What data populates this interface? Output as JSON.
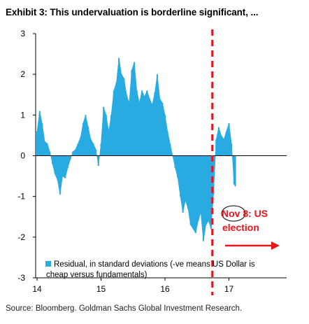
{
  "title": "Exhibit 3: This undervaluation is borderline significant, ...",
  "source": "Source: Bloomberg. Goldman Sachs Global Investment Research.",
  "colors": {
    "series": "#29abe2",
    "annotation": "#e8141b",
    "axis": "#000000"
  },
  "chart_data": {
    "type": "area",
    "title": "Exhibit 3: This undervaluation is borderline significant, ...",
    "xlabel": "",
    "ylabel": "",
    "ylim": [
      -3,
      3
    ],
    "yticks": [
      "3",
      "2",
      "1",
      "0",
      "-1",
      "-2",
      "-3"
    ],
    "xlim": [
      2014,
      2017.3
    ],
    "xticks": [
      "14",
      "15",
      "16",
      "17"
    ],
    "grid": false,
    "legend": {
      "position": "bottom-left",
      "line1": "Residual, in standard deviations (-ve means US Dollar is",
      "line2": "cheap versus fundamentals)"
    },
    "series": [
      {
        "name": "Residual, in standard deviations (-ve means US Dollar is cheap versus fundamentals)",
        "x": [
          2014.0,
          2014.04,
          2014.08,
          2014.12,
          2014.16,
          2014.2,
          2014.24,
          2014.28,
          2014.32,
          2014.36,
          2014.4,
          2014.44,
          2014.48,
          2014.52,
          2014.56,
          2014.6,
          2014.64,
          2014.68,
          2014.72,
          2014.76,
          2014.8,
          2014.84,
          2014.88,
          2014.92,
          2014.96,
          2015.0,
          2015.04,
          2015.08,
          2015.12,
          2015.16,
          2015.2,
          2015.24,
          2015.28,
          2015.32,
          2015.36,
          2015.4,
          2015.44,
          2015.48,
          2015.52,
          2015.56,
          2015.6,
          2015.64,
          2015.68,
          2015.72,
          2015.76,
          2015.8,
          2015.84,
          2015.88,
          2015.92,
          2015.96,
          2016.0,
          2016.04,
          2016.08,
          2016.12,
          2016.16,
          2016.2,
          2016.24,
          2016.28,
          2016.32,
          2016.36,
          2016.4,
          2016.44,
          2016.48,
          2016.52,
          2016.56,
          2016.6,
          2016.64,
          2016.68,
          2016.72,
          2016.76,
          2016.8,
          2016.84,
          2016.88,
          2016.92,
          2016.96,
          2017.0,
          2017.04,
          2017.08,
          2017.1
        ],
        "values": [
          0.6,
          1.1,
          0.8,
          0.35,
          0.3,
          0.1,
          -0.2,
          -0.45,
          -0.6,
          -0.95,
          -0.5,
          -0.55,
          -0.3,
          -0.1,
          0.1,
          0.15,
          0.3,
          0.45,
          0.8,
          1.0,
          0.7,
          0.4,
          0.3,
          0.15,
          -0.25,
          0.3,
          1.2,
          1.0,
          0.6,
          1.0,
          1.6,
          1.8,
          2.4,
          2.0,
          1.9,
          1.5,
          1.3,
          2.1,
          2.3,
          1.6,
          1.3,
          1.6,
          1.45,
          1.6,
          1.4,
          1.25,
          1.55,
          2.0,
          1.4,
          1.3,
          1.0,
          0.6,
          0.3,
          0.0,
          -0.3,
          -0.55,
          -1.0,
          -1.4,
          -1.1,
          -1.3,
          -1.7,
          -1.8,
          -1.9,
          -1.6,
          -1.4,
          -2.1,
          -1.7,
          -1.6,
          -1.8,
          -0.95,
          0.4,
          0.7,
          0.5,
          0.4,
          0.6,
          0.8,
          0.3,
          -0.7,
          -0.75
        ]
      }
    ],
    "annotations": {
      "event_line_x": 2016.74,
      "event_label_line1": "Nov 8: US",
      "event_label_line2": "election"
    }
  }
}
